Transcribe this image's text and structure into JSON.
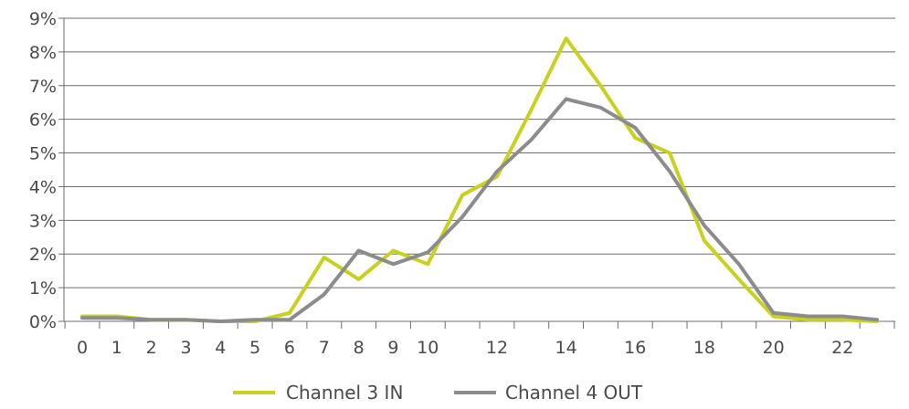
{
  "chart_data": {
    "type": "line",
    "x": [
      0,
      1,
      2,
      3,
      4,
      5,
      6,
      7,
      8,
      9,
      10,
      11,
      12,
      13,
      14,
      15,
      16,
      17,
      18,
      19,
      20,
      21,
      22,
      23
    ],
    "x_tick_labels": [
      "0",
      "1",
      "2",
      "3",
      "4",
      "5",
      "6",
      "7",
      "8",
      "9",
      "10",
      "12",
      "14",
      "16",
      "18",
      "20",
      "22"
    ],
    "y_tick_labels": [
      "0%",
      "1%",
      "2%",
      "3%",
      "4%",
      "5%",
      "6%",
      "7%",
      "8%",
      "9%"
    ],
    "ylim": [
      0,
      9
    ],
    "y_unit": "%",
    "grid": "horizontal",
    "legend_position": "bottom-center",
    "series": [
      {
        "name": "Channel 3 IN",
        "color": "#c8d21e",
        "values": [
          0.15,
          0.15,
          0.05,
          0.05,
          0.0,
          0.0,
          0.25,
          1.9,
          1.25,
          2.1,
          1.7,
          3.75,
          4.3,
          6.3,
          8.4,
          7.0,
          5.45,
          5.0,
          2.4,
          1.25,
          0.15,
          0.05,
          0.05,
          0.0
        ]
      },
      {
        "name": "Channel 4 OUT",
        "color": "#8c8c8c",
        "values": [
          0.1,
          0.1,
          0.05,
          0.05,
          0.0,
          0.05,
          0.05,
          0.8,
          2.1,
          1.7,
          2.05,
          3.1,
          4.45,
          5.4,
          6.6,
          6.35,
          5.75,
          4.45,
          2.85,
          1.7,
          0.25,
          0.15,
          0.15,
          0.05
        ]
      }
    ]
  }
}
